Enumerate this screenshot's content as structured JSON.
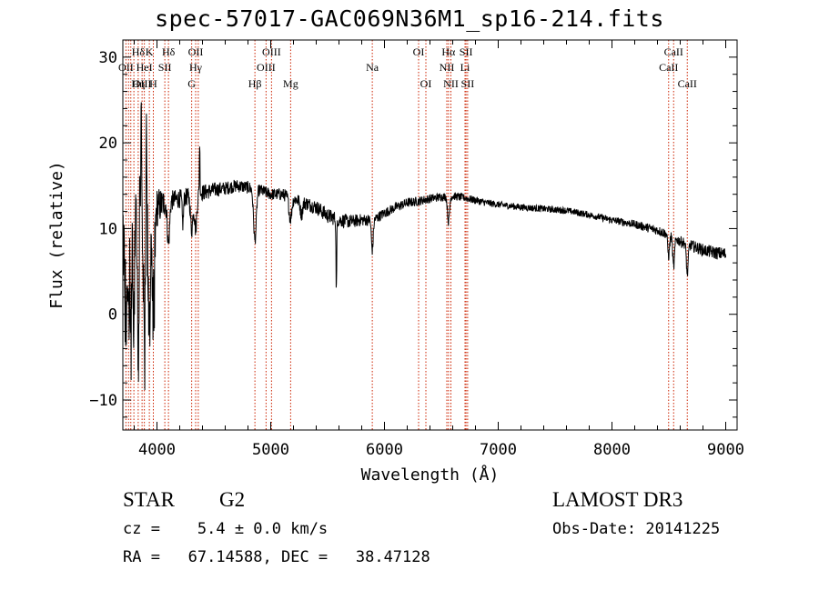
{
  "chart_data": {
    "type": "line",
    "title": "spec-57017-GAC069N36M1_sp16-214.fits",
    "xlabel": "Wavelength (Å)",
    "ylabel": "Flux (relative)",
    "xlim": [
      3700,
      9100
    ],
    "ylim": [
      -13.5,
      32
    ],
    "xticks": [
      4000,
      5000,
      6000,
      7000,
      8000,
      9000
    ],
    "xtick_labels": [
      "4000",
      "5000",
      "6000",
      "7000",
      "8000",
      "9000"
    ],
    "yticks": [
      -10,
      0,
      10,
      20,
      30
    ],
    "ytick_labels": [
      "−10",
      "0",
      "10",
      "20",
      "30"
    ],
    "spectrum_continuum": [
      [
        3700,
        5
      ],
      [
        3760,
        8
      ],
      [
        3820,
        10.5
      ],
      [
        3900,
        11.5
      ],
      [
        4000,
        12.5
      ],
      [
        4100,
        13.2
      ],
      [
        4200,
        13.5
      ],
      [
        4300,
        13.8
      ],
      [
        4400,
        14.2
      ],
      [
        4500,
        14.5
      ],
      [
        4600,
        14.7
      ],
      [
        4700,
        15
      ],
      [
        4800,
        14.8
      ],
      [
        4900,
        14.5
      ],
      [
        5000,
        14
      ],
      [
        5100,
        14
      ],
      [
        5200,
        13.5
      ],
      [
        5300,
        13
      ],
      [
        5400,
        12.5
      ],
      [
        5500,
        11.5
      ],
      [
        5600,
        11
      ],
      [
        5700,
        10.8
      ],
      [
        5800,
        11
      ],
      [
        5900,
        11
      ],
      [
        6000,
        11.8
      ],
      [
        6100,
        12.5
      ],
      [
        6200,
        13
      ],
      [
        6300,
        13.2
      ],
      [
        6400,
        13.5
      ],
      [
        6500,
        13.7
      ],
      [
        6600,
        13.8
      ],
      [
        6700,
        13.6
      ],
      [
        6800,
        13.3
      ],
      [
        6900,
        13
      ],
      [
        7000,
        12.8
      ],
      [
        7200,
        12.5
      ],
      [
        7400,
        12.3
      ],
      [
        7600,
        12.1
      ],
      [
        7800,
        11.6
      ],
      [
        8000,
        11
      ],
      [
        8200,
        10.5
      ],
      [
        8400,
        9.8
      ],
      [
        8500,
        9.3
      ],
      [
        8600,
        8.5
      ],
      [
        8700,
        8
      ],
      [
        8800,
        7.5
      ],
      [
        8900,
        7.2
      ],
      [
        9000,
        7
      ]
    ],
    "spectrum_features": [
      {
        "center": 3727,
        "depth": -8,
        "width": 6
      },
      {
        "center": 3750,
        "depth": -10,
        "width": 6
      },
      {
        "center": 3770,
        "depth": -12,
        "width": 5
      },
      {
        "center": 3797,
        "depth": -14,
        "width": 5
      },
      {
        "center": 3835,
        "depth": -15,
        "width": 6
      },
      {
        "center": 3889,
        "depth": -16,
        "width": 7
      },
      {
        "center": 3933,
        "depth": -12,
        "width": 9
      },
      {
        "center": 3968,
        "depth": -14,
        "width": 10
      },
      {
        "center": 4101,
        "depth": -5,
        "width": 10
      },
      {
        "center": 4227,
        "depth": -3,
        "width": 6
      },
      {
        "center": 4305,
        "depth": -4,
        "width": 10
      },
      {
        "center": 4340,
        "depth": -4,
        "width": 10
      },
      {
        "center": 4861,
        "depth": -6,
        "width": 12
      },
      {
        "center": 5173,
        "depth": -2.5,
        "width": 12
      },
      {
        "center": 5270,
        "depth": -1.5,
        "width": 10
      },
      {
        "center": 5577,
        "depth": -13,
        "width": 3
      },
      {
        "center": 5893,
        "depth": -3.5,
        "width": 8
      },
      {
        "center": 6563,
        "depth": -3,
        "width": 9
      },
      {
        "center": 8498,
        "depth": -2.5,
        "width": 8
      },
      {
        "center": 8542,
        "depth": -3.5,
        "width": 8
      },
      {
        "center": 8662,
        "depth": -3.5,
        "width": 8
      },
      {
        "center": 3860,
        "depth": 12,
        "width": 3
      },
      {
        "center": 3908,
        "depth": 10,
        "width": 3
      },
      {
        "center": 4375,
        "depth": 6,
        "width": 3
      },
      {
        "center": 5577,
        "depth": 5,
        "width": 2
      }
    ],
    "spectrum_noise": [
      [
        3700,
        3.5
      ],
      [
        3950,
        3
      ],
      [
        4100,
        1.2
      ],
      [
        4600,
        0.8
      ],
      [
        5000,
        0.7
      ],
      [
        5500,
        0.9
      ],
      [
        6000,
        0.6
      ],
      [
        7000,
        0.4
      ],
      [
        8000,
        0.4
      ],
      [
        8500,
        0.6
      ],
      [
        9000,
        0.8
      ]
    ],
    "line_markers": [
      {
        "label": "Hδ",
        "wavelength": 3835,
        "row": 0
      },
      {
        "label": "K",
        "wavelength": 3933,
        "row": 0
      },
      {
        "label": "Hδ",
        "wavelength": 4101,
        "row": 0
      },
      {
        "label": "OII",
        "wavelength": 3727,
        "row": 1
      },
      {
        "label": "HeI",
        "wavelength": 3889,
        "row": 1
      },
      {
        "label": "SII",
        "wavelength": 4069,
        "row": 1
      },
      {
        "label": "OIII",
        "wavelength": 3869,
        "row": 2
      },
      {
        "label": "Hη",
        "wavelength": 3835,
        "row": 2
      },
      {
        "label": "H",
        "wavelength": 3968,
        "row": 2
      },
      {
        "label": "OII",
        "wavelength": 4340,
        "row": 0
      },
      {
        "label": "Hγ",
        "wavelength": 4340,
        "row": 1
      },
      {
        "label": "G",
        "wavelength": 4305,
        "row": 2
      },
      {
        "label": "Hβ",
        "wavelength": 4861,
        "row": 2
      },
      {
        "label": "OIII",
        "wavelength": 5007,
        "row": 0
      },
      {
        "label": "OIII",
        "wavelength": 4959,
        "row": 1
      },
      {
        "label": "Mg",
        "wavelength": 5175,
        "row": 2
      },
      {
        "label": "Na",
        "wavelength": 5893,
        "row": 1
      },
      {
        "label": "OI",
        "wavelength": 6300,
        "row": 0
      },
      {
        "label": "OI",
        "wavelength": 6364,
        "row": 2
      },
      {
        "label": "Hα",
        "wavelength": 6563,
        "row": 0
      },
      {
        "label": "NII",
        "wavelength": 6548,
        "row": 1
      },
      {
        "label": "NII",
        "wavelength": 6584,
        "row": 2
      },
      {
        "label": "SII",
        "wavelength": 6717,
        "row": 0
      },
      {
        "label": "Li",
        "wavelength": 6708,
        "row": 1
      },
      {
        "label": "SII",
        "wavelength": 6731,
        "row": 2
      },
      {
        "label": "CaII",
        "wavelength": 8542,
        "row": 0
      },
      {
        "label": "CaII",
        "wavelength": 8498,
        "row": 1
      },
      {
        "label": "CaII",
        "wavelength": 8662,
        "row": 2
      }
    ],
    "marker_lines": [
      3727,
      3750,
      3770,
      3797,
      3835,
      3869,
      3889,
      3933,
      3968,
      4069,
      4101,
      4305,
      4340,
      4363,
      4861,
      4959,
      5007,
      5175,
      5893,
      6300,
      6364,
      6548,
      6563,
      6584,
      6708,
      6717,
      6731,
      8498,
      8542,
      8662
    ],
    "marker_color": "#cc2200"
  },
  "info": {
    "object_class": "STAR",
    "subclass": "G2",
    "survey": "LAMOST DR3",
    "redshift_line": "cz =    5.4 ± 0.0 km/s",
    "obs_date_line": "Obs-Date: 20141225",
    "coords_line": "RA =   67.14588, DEC =   38.47128"
  }
}
